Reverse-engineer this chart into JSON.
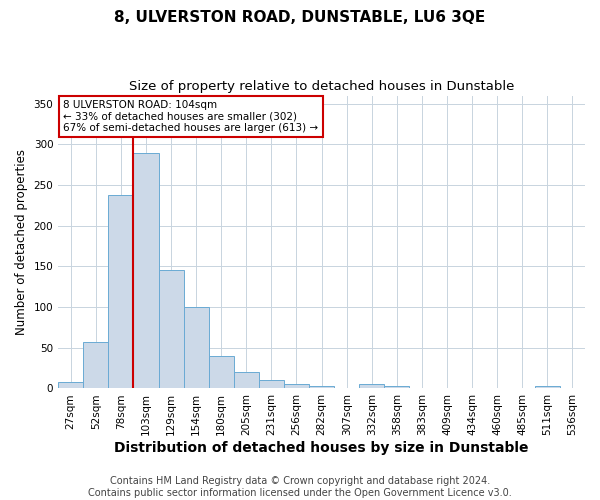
{
  "title": "8, ULVERSTON ROAD, DUNSTABLE, LU6 3QE",
  "subtitle": "Size of property relative to detached houses in Dunstable",
  "xlabel": "Distribution of detached houses by size in Dunstable",
  "ylabel": "Number of detached properties",
  "bar_labels": [
    "27sqm",
    "52sqm",
    "78sqm",
    "103sqm",
    "129sqm",
    "154sqm",
    "180sqm",
    "205sqm",
    "231sqm",
    "256sqm",
    "282sqm",
    "307sqm",
    "332sqm",
    "358sqm",
    "383sqm",
    "409sqm",
    "434sqm",
    "460sqm",
    "485sqm",
    "511sqm",
    "536sqm"
  ],
  "bar_values": [
    8,
    57,
    238,
    290,
    145,
    100,
    40,
    20,
    11,
    6,
    3,
    0,
    5,
    3,
    0,
    0,
    0,
    0,
    0,
    3,
    0
  ],
  "bar_color": "#ccd9e8",
  "bar_edge_color": "#6aaad4",
  "red_line_x": 2.5,
  "ylim": [
    0,
    360
  ],
  "yticks": [
    0,
    50,
    100,
    150,
    200,
    250,
    300,
    350
  ],
  "annotation_text": "8 ULVERSTON ROAD: 104sqm\n← 33% of detached houses are smaller (302)\n67% of semi-detached houses are larger (613) →",
  "annotation_box_color": "#ffffff",
  "annotation_box_edge_color": "#cc0000",
  "footer_line1": "Contains HM Land Registry data © Crown copyright and database right 2024.",
  "footer_line2": "Contains public sector information licensed under the Open Government Licence v3.0.",
  "background_color": "#ffffff",
  "grid_color": "#c8d4de",
  "title_fontsize": 11,
  "subtitle_fontsize": 9.5,
  "xlabel_fontsize": 10,
  "ylabel_fontsize": 8.5,
  "tick_fontsize": 7.5,
  "footer_fontsize": 7,
  "annotation_fontsize": 7.5
}
